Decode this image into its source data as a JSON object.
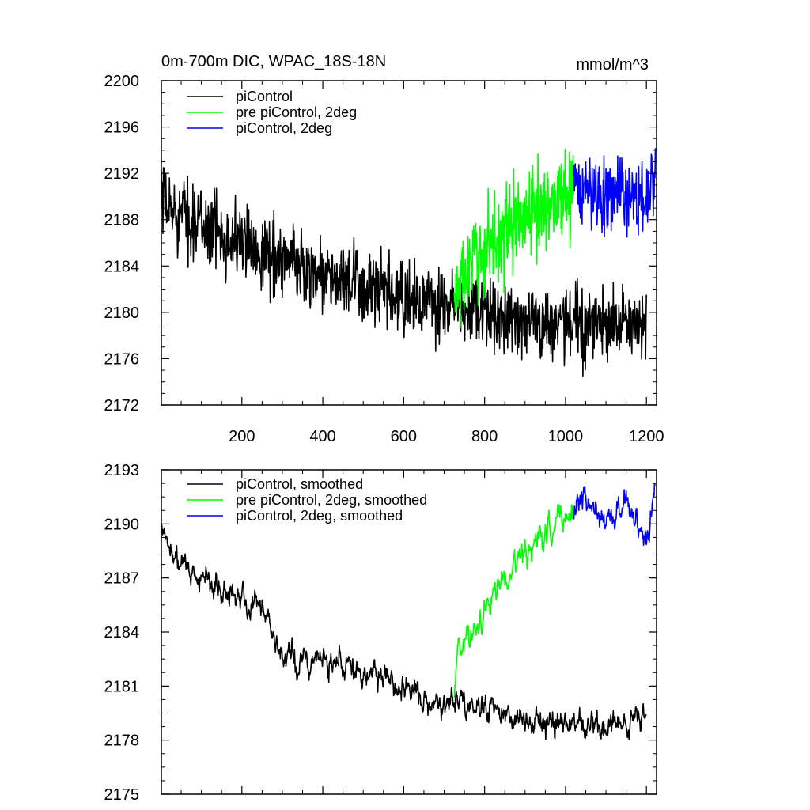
{
  "chart_data": [
    {
      "type": "line",
      "title": "0m-700m DIC, WPAC_18S-18N",
      "units_label": "mmol/m^3",
      "xlabel": "",
      "ylabel": "",
      "xlim": [
        1,
        1225
      ],
      "ylim": [
        2172,
        2200
      ],
      "xticks": [
        200,
        400,
        600,
        800,
        1000,
        1200
      ],
      "yticks": [
        2172,
        2176,
        2180,
        2184,
        2188,
        2192,
        2196,
        2200
      ],
      "legend_position": "top-left",
      "series": [
        {
          "name": "piControl",
          "color": "#000000",
          "x_range": [
            1,
            1200
          ],
          "trend_x": [
            1,
            150,
            300,
            450,
            600,
            720,
            900,
            1050,
            1200
          ],
          "trend_y": [
            2189.3,
            2186.8,
            2184.6,
            2182.6,
            2181.0,
            2180.4,
            2179.3,
            2179.0,
            2178.6
          ],
          "noise_amplitude": 1.6
        },
        {
          "name": "pre piControl, 2deg",
          "color": "#00ff00",
          "x_range": [
            725,
            1020
          ],
          "trend_x": [
            725,
            750,
            800,
            850,
            900,
            950,
            1020
          ],
          "trend_y": [
            2181.2,
            2183.2,
            2185.5,
            2187.0,
            2188.2,
            2189.3,
            2190.8
          ],
          "noise_amplitude": 1.9
        },
        {
          "name": "piControl, 2deg",
          "color": "#0000ff",
          "x_range": [
            1020,
            1222
          ],
          "trend_x": [
            1020,
            1080,
            1140,
            1200,
            1222
          ],
          "trend_y": [
            2190.6,
            2190.3,
            2190.2,
            2189.8,
            2191.2
          ],
          "noise_amplitude": 1.6
        }
      ]
    },
    {
      "type": "line",
      "title": "",
      "xlabel": "",
      "ylabel": "",
      "xlim": [
        1,
        1225
      ],
      "ylim": [
        2175,
        2193
      ],
      "xticks": [
        200,
        400,
        600,
        800,
        1000,
        1200
      ],
      "yticks": [
        2175,
        2178,
        2181,
        2184,
        2187,
        2190,
        2193
      ],
      "legend_position": "top-left",
      "series": [
        {
          "name": "piControl, smoothed",
          "color": "#000000",
          "x_range": [
            1,
            1200
          ],
          "trend_x": [
            1,
            10,
            100,
            200,
            250,
            270,
            300,
            350,
            450,
            550,
            600,
            650,
            720,
            850,
            900,
            1000,
            1100,
            1150,
            1200
          ],
          "trend_y": [
            2190.0,
            2189.0,
            2186.8,
            2186.0,
            2185.5,
            2184.0,
            2182.8,
            2182.5,
            2182.3,
            2181.5,
            2181.0,
            2180.5,
            2180.2,
            2179.6,
            2179.0,
            2178.9,
            2178.7,
            2178.3,
            2179.8
          ],
          "noise_amplitude": 0.45
        },
        {
          "name": "pre piControl, 2deg, smoothed",
          "color": "#00ff00",
          "x_range": [
            725,
            1020
          ],
          "trend_x": [
            725,
            735,
            760,
            800,
            850,
            880,
            900,
            950,
            1000,
            1020
          ],
          "trend_y": [
            2181.0,
            2183.2,
            2183.5,
            2185.3,
            2187.4,
            2187.8,
            2188.3,
            2189.3,
            2190.4,
            2190.8
          ],
          "noise_amplitude": 0.5
        },
        {
          "name": "piControl, 2deg, smoothed",
          "color": "#0000ff",
          "x_range": [
            1020,
            1222
          ],
          "trend_x": [
            1020,
            1040,
            1080,
            1140,
            1160,
            1195,
            1205,
            1222
          ],
          "trend_y": [
            2190.7,
            2191.6,
            2190.3,
            2190.8,
            2191.2,
            2189.2,
            2189.6,
            2192.4
          ],
          "noise_amplitude": 0.45
        }
      ]
    }
  ]
}
